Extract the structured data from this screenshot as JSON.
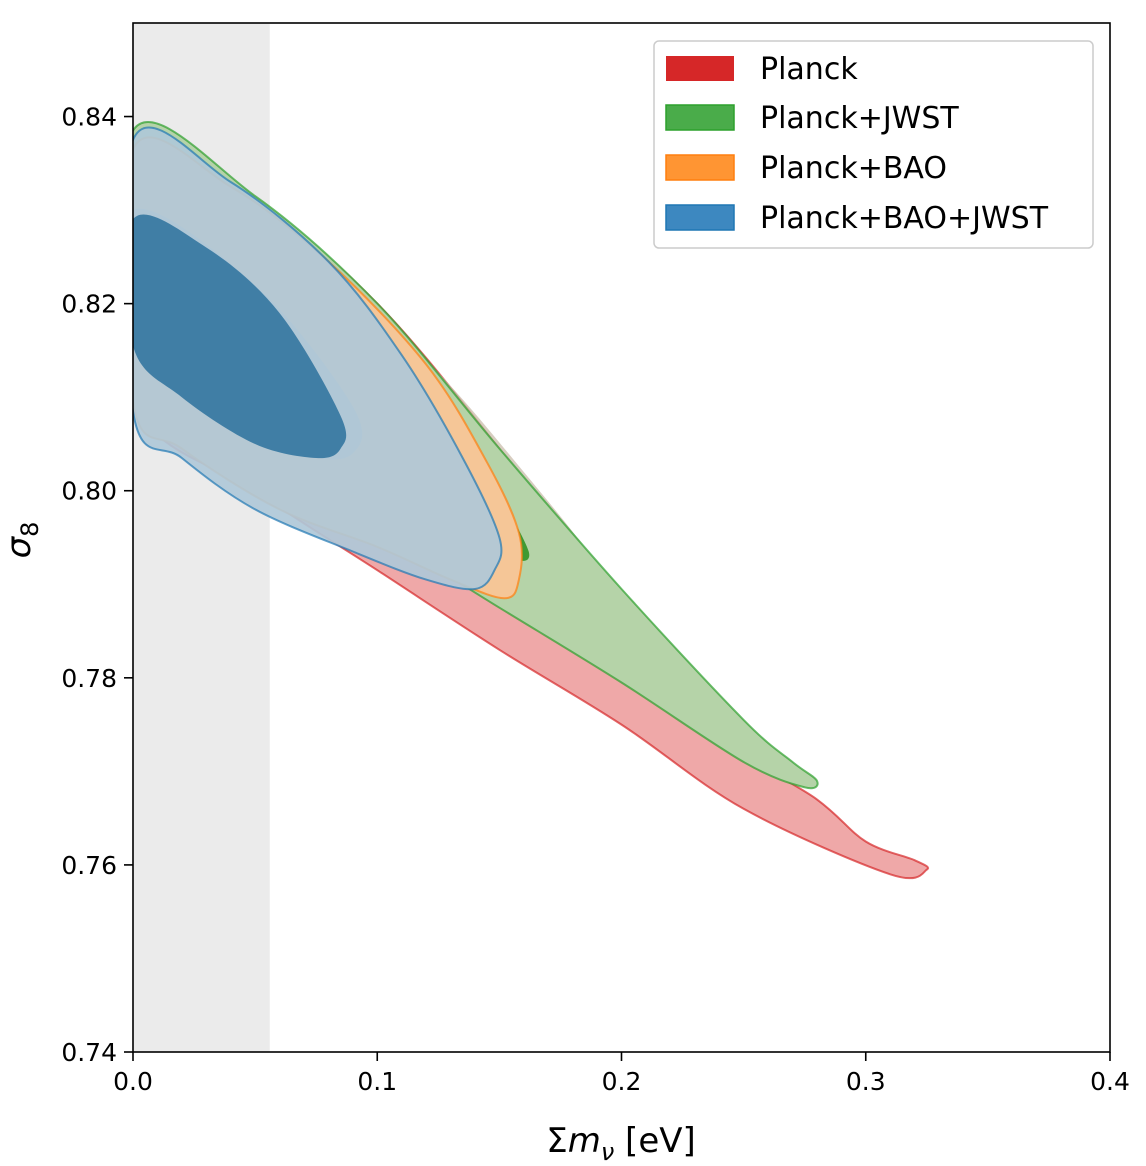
{
  "chart_data": {
    "type": "contour",
    "xlabel": "Σmν [eV]",
    "ylabel": "σ8",
    "xlim": [
      0.0,
      0.4
    ],
    "ylim": [
      0.74,
      0.85
    ],
    "x_ticks": [
      "0.0",
      "0.1",
      "0.2",
      "0.3",
      "0.4"
    ],
    "y_ticks": [
      "0.74",
      "0.76",
      "0.78",
      "0.80",
      "0.82",
      "0.84"
    ],
    "grid": false,
    "legend_position": "top-right",
    "excluded_region": {
      "x_range": [
        0.0,
        0.056
      ],
      "color": "#ebebeb"
    },
    "series": [
      {
        "name": "Planck",
        "color": "#d62728",
        "contour_1sigma": [
          [
            0.0,
            0.8375
          ],
          [
            0.05,
            0.831
          ],
          [
            0.1,
            0.82
          ],
          [
            0.15,
            0.8045
          ],
          [
            0.2,
            0.7875
          ],
          [
            0.24,
            0.774
          ],
          [
            0.28,
            0.767
          ],
          [
            0.3,
            0.7625
          ],
          [
            0.32,
            0.7605
          ],
          [
            0.325,
            0.7595
          ],
          [
            0.31,
            0.759
          ],
          [
            0.25,
            0.766
          ],
          [
            0.2,
            0.775
          ],
          [
            0.15,
            0.783
          ],
          [
            0.1,
            0.7915
          ],
          [
            0.05,
            0.8
          ],
          [
            0.0,
            0.81
          ]
        ],
        "contour_2sigma": [
          [
            0.0,
            0.8375
          ],
          [
            0.06,
            0.829
          ],
          [
            0.12,
            0.814
          ],
          [
            0.16,
            0.802
          ],
          [
            0.19,
            0.792
          ],
          [
            0.19,
            0.789
          ],
          [
            0.17,
            0.788
          ],
          [
            0.12,
            0.797
          ],
          [
            0.06,
            0.807
          ],
          [
            0.0,
            0.817
          ]
        ]
      },
      {
        "name": "Planck+JWST",
        "color": "#2ca02c",
        "contour_1sigma": [
          [
            0.0,
            0.8385
          ],
          [
            0.05,
            0.8315
          ],
          [
            0.1,
            0.82
          ],
          [
            0.15,
            0.8045
          ],
          [
            0.2,
            0.7895
          ],
          [
            0.25,
            0.7755
          ],
          [
            0.27,
            0.771
          ],
          [
            0.28,
            0.769
          ],
          [
            0.275,
            0.7683
          ],
          [
            0.25,
            0.771
          ],
          [
            0.2,
            0.7795
          ],
          [
            0.15,
            0.7875
          ],
          [
            0.1,
            0.7955
          ],
          [
            0.05,
            0.8025
          ],
          [
            0.0,
            0.8105
          ]
        ],
        "contour_2sigma": [
          [
            0.155,
            0.797
          ],
          [
            0.162,
            0.7935
          ],
          [
            0.16,
            0.7925
          ],
          [
            0.154,
            0.7935
          ],
          [
            0.15,
            0.797
          ]
        ]
      },
      {
        "name": "Planck+BAO",
        "color": "#ff7f0e",
        "contour_1sigma": [
          [
            0.0,
            0.8365
          ],
          [
            0.04,
            0.8325
          ],
          [
            0.08,
            0.8245
          ],
          [
            0.12,
            0.8135
          ],
          [
            0.145,
            0.803
          ],
          [
            0.158,
            0.7955
          ],
          [
            0.158,
            0.7905
          ],
          [
            0.152,
            0.7885
          ],
          [
            0.13,
            0.7905
          ],
          [
            0.1,
            0.794
          ],
          [
            0.06,
            0.798
          ],
          [
            0.02,
            0.8045
          ],
          [
            0.0,
            0.8095
          ]
        ],
        "contour_2sigma": [
          [
            0.0,
            0.83
          ],
          [
            0.05,
            0.822
          ],
          [
            0.09,
            0.809
          ],
          [
            0.09,
            0.804
          ],
          [
            0.07,
            0.804
          ],
          [
            0.03,
            0.81
          ],
          [
            0.0,
            0.815
          ]
        ]
      },
      {
        "name": "Planck+BAO+JWST",
        "color": "#1f77b4",
        "contour_1sigma": [
          [
            0.0,
            0.8375
          ],
          [
            0.04,
            0.833
          ],
          [
            0.08,
            0.8245
          ],
          [
            0.11,
            0.8145
          ],
          [
            0.135,
            0.8035
          ],
          [
            0.15,
            0.795
          ],
          [
            0.148,
            0.7915
          ],
          [
            0.14,
            0.7895
          ],
          [
            0.12,
            0.7905
          ],
          [
            0.09,
            0.7935
          ],
          [
            0.05,
            0.798
          ],
          [
            0.02,
            0.8035
          ],
          [
            0.0,
            0.8085
          ]
        ],
        "contour_2sigma": [
          [
            0.0,
            0.829
          ],
          [
            0.03,
            0.826
          ],
          [
            0.06,
            0.819
          ],
          [
            0.085,
            0.808
          ],
          [
            0.085,
            0.8045
          ],
          [
            0.075,
            0.8035
          ],
          [
            0.05,
            0.805
          ],
          [
            0.02,
            0.81
          ],
          [
            0.0,
            0.8155
          ]
        ]
      }
    ]
  }
}
